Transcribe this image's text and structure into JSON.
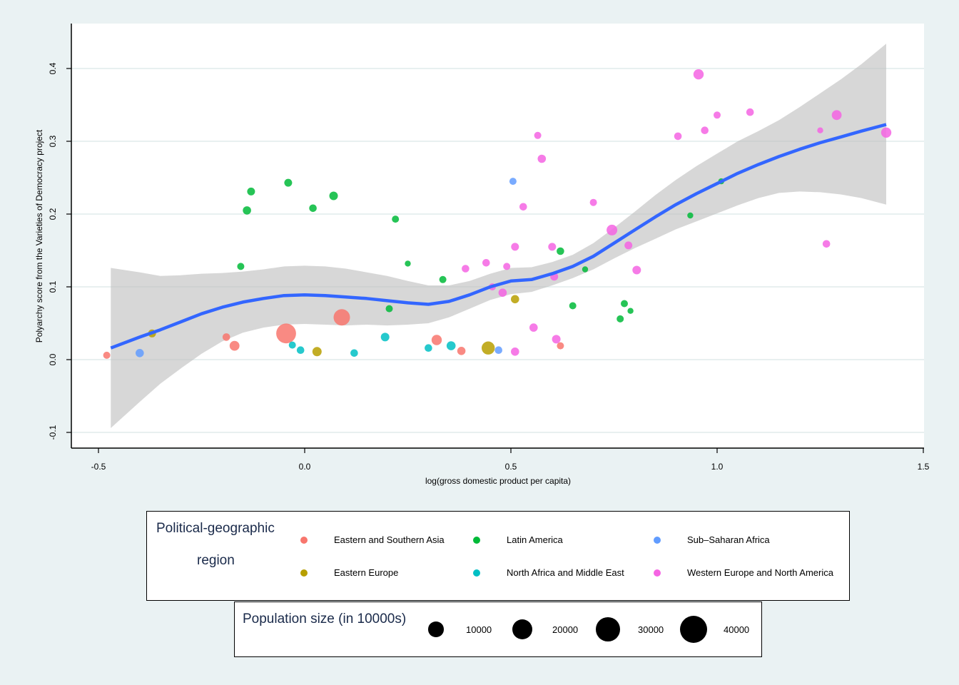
{
  "chart_data": {
    "type": "scatter",
    "xlabel": "log(gross domestic product per capita)",
    "ylabel": "Polyarchy score from the Varieties of Democracy project",
    "xlim": [
      -0.55,
      1.5
    ],
    "ylim": [
      -0.12,
      0.46
    ],
    "xticks": [
      -0.5,
      0.0,
      0.5,
      1.0,
      1.5
    ],
    "xtick_labels": [
      "-0.5",
      "0.0",
      "0.5",
      "1.0",
      "1.5"
    ],
    "yticks": [
      -0.1,
      0.0,
      0.1,
      0.2,
      0.3,
      0.4
    ],
    "ytick_labels": [
      "-0.1",
      "0.0",
      "0.1",
      "0.2",
      "0.3",
      "0.4"
    ],
    "grid": "horizontal",
    "colors": {
      "Eastern and Southern Asia": "#f8766d",
      "Eastern Europe": "#b79f00",
      "Latin America": "#00ba38",
      "North Africa and Middle East": "#00bfc4",
      "Sub–Saharan Africa": "#619cff",
      "Western Europe and North America": "#f564e3"
    },
    "series": [
      {
        "name": "Eastern and Southern Asia",
        "points": [
          [
            -0.48,
            0.006,
            200
          ],
          [
            -0.19,
            0.031,
            250
          ],
          [
            -0.17,
            0.019,
            600
          ],
          [
            -0.045,
            0.036,
            4000
          ],
          [
            0.09,
            0.058,
            2500
          ],
          [
            0.32,
            0.027,
            700
          ],
          [
            0.38,
            0.012,
            350
          ],
          [
            0.62,
            0.019,
            200
          ]
        ]
      },
      {
        "name": "Eastern Europe",
        "points": [
          [
            -0.37,
            0.036,
            300
          ],
          [
            0.03,
            0.011,
            500
          ],
          [
            0.445,
            0.016,
            1400
          ],
          [
            0.51,
            0.083,
            350
          ]
        ]
      },
      {
        "name": "Latin America",
        "points": [
          [
            -0.155,
            0.128,
            200
          ],
          [
            -0.14,
            0.205,
            350
          ],
          [
            -0.13,
            0.231,
            300
          ],
          [
            -0.04,
            0.243,
            300
          ],
          [
            0.02,
            0.208,
            250
          ],
          [
            0.07,
            0.225,
            400
          ],
          [
            0.205,
            0.07,
            200
          ],
          [
            0.22,
            0.193,
            200
          ],
          [
            0.25,
            0.132,
            100
          ],
          [
            0.335,
            0.11,
            200
          ],
          [
            0.62,
            0.149,
            250
          ],
          [
            0.65,
            0.074,
            200
          ],
          [
            0.68,
            0.124,
            100
          ],
          [
            0.765,
            0.056,
            200
          ],
          [
            0.775,
            0.077,
            200
          ],
          [
            0.79,
            0.067,
            100
          ],
          [
            0.935,
            0.198,
            100
          ],
          [
            1.01,
            0.245,
            100
          ]
        ]
      },
      {
        "name": "North Africa and Middle East",
        "points": [
          [
            -0.03,
            0.02,
            200
          ],
          [
            -0.01,
            0.013,
            250
          ],
          [
            0.12,
            0.009,
            250
          ],
          [
            0.195,
            0.031,
            400
          ],
          [
            0.3,
            0.016,
            250
          ],
          [
            0.355,
            0.019,
            450
          ]
        ]
      },
      {
        "name": "Sub–Saharan Africa",
        "points": [
          [
            -0.4,
            0.009,
            350
          ],
          [
            0.47,
            0.013,
            250
          ],
          [
            0.505,
            0.245,
            200
          ]
        ]
      },
      {
        "name": "Western Europe and North America",
        "points": [
          [
            0.39,
            0.125,
            250
          ],
          [
            0.44,
            0.133,
            250
          ],
          [
            0.455,
            0.1,
            200
          ],
          [
            0.48,
            0.092,
            350
          ],
          [
            0.49,
            0.128,
            200
          ],
          [
            0.51,
            0.011,
            350
          ],
          [
            0.51,
            0.155,
            300
          ],
          [
            0.53,
            0.21,
            250
          ],
          [
            0.555,
            0.044,
            350
          ],
          [
            0.565,
            0.308,
            200
          ],
          [
            0.575,
            0.276,
            350
          ],
          [
            0.6,
            0.155,
            300
          ],
          [
            0.605,
            0.114,
            300
          ],
          [
            0.61,
            0.028,
            400
          ],
          [
            0.7,
            0.216,
            200
          ],
          [
            0.745,
            0.178,
            800
          ],
          [
            0.785,
            0.157,
            300
          ],
          [
            0.805,
            0.123,
            400
          ],
          [
            0.905,
            0.307,
            250
          ],
          [
            0.955,
            0.392,
            700
          ],
          [
            0.97,
            0.315,
            250
          ],
          [
            1.0,
            0.336,
            200
          ],
          [
            1.08,
            0.34,
            250
          ],
          [
            1.25,
            0.315,
            100
          ],
          [
            1.265,
            0.159,
            250
          ],
          [
            1.29,
            0.336,
            600
          ],
          [
            1.41,
            0.312,
            700
          ]
        ]
      }
    ],
    "smooth_fit": {
      "x": [
        -0.47,
        -0.4,
        -0.35,
        -0.3,
        -0.25,
        -0.2,
        -0.15,
        -0.1,
        -0.05,
        0.0,
        0.05,
        0.1,
        0.15,
        0.2,
        0.25,
        0.3,
        0.35,
        0.4,
        0.45,
        0.5,
        0.55,
        0.6,
        0.65,
        0.7,
        0.75,
        0.8,
        0.85,
        0.9,
        0.95,
        1.0,
        1.05,
        1.1,
        1.15,
        1.2,
        1.25,
        1.3,
        1.35,
        1.41
      ],
      "y": [
        0.016,
        0.031,
        0.041,
        0.052,
        0.063,
        0.072,
        0.079,
        0.084,
        0.088,
        0.089,
        0.088,
        0.086,
        0.084,
        0.081,
        0.078,
        0.076,
        0.08,
        0.089,
        0.1,
        0.108,
        0.11,
        0.118,
        0.128,
        0.142,
        0.16,
        0.178,
        0.196,
        0.213,
        0.228,
        0.242,
        0.256,
        0.268,
        0.279,
        0.289,
        0.298,
        0.306,
        0.314,
        0.323
      ],
      "lower": [
        -0.094,
        -0.058,
        -0.033,
        -0.012,
        0.008,
        0.025,
        0.037,
        0.044,
        0.048,
        0.049,
        0.048,
        0.047,
        0.048,
        0.047,
        0.048,
        0.05,
        0.058,
        0.07,
        0.082,
        0.09,
        0.093,
        0.102,
        0.112,
        0.124,
        0.139,
        0.153,
        0.166,
        0.179,
        0.19,
        0.201,
        0.212,
        0.222,
        0.229,
        0.231,
        0.23,
        0.227,
        0.222,
        0.213
      ],
      "upper": [
        0.126,
        0.12,
        0.115,
        0.116,
        0.118,
        0.119,
        0.121,
        0.124,
        0.128,
        0.129,
        0.128,
        0.125,
        0.12,
        0.115,
        0.108,
        0.102,
        0.102,
        0.108,
        0.118,
        0.126,
        0.127,
        0.134,
        0.144,
        0.16,
        0.181,
        0.203,
        0.226,
        0.247,
        0.266,
        0.283,
        0.3,
        0.314,
        0.329,
        0.347,
        0.366,
        0.385,
        0.406,
        0.434
      ]
    }
  },
  "legend": {
    "region_title_line1": "Political-geographic",
    "region_title_line2": "region",
    "regions": [
      "Eastern and Southern Asia",
      "Latin America",
      "Sub–Saharan Africa",
      "Eastern Europe",
      "North Africa and Middle East",
      "Western Europe and North America"
    ],
    "size_title": "Population size (in 10000s)",
    "sizes": [
      {
        "value": 10000,
        "label": "10000"
      },
      {
        "value": 20000,
        "label": "20000"
      },
      {
        "value": 30000,
        "label": "30000"
      },
      {
        "value": 40000,
        "label": "40000"
      }
    ]
  }
}
